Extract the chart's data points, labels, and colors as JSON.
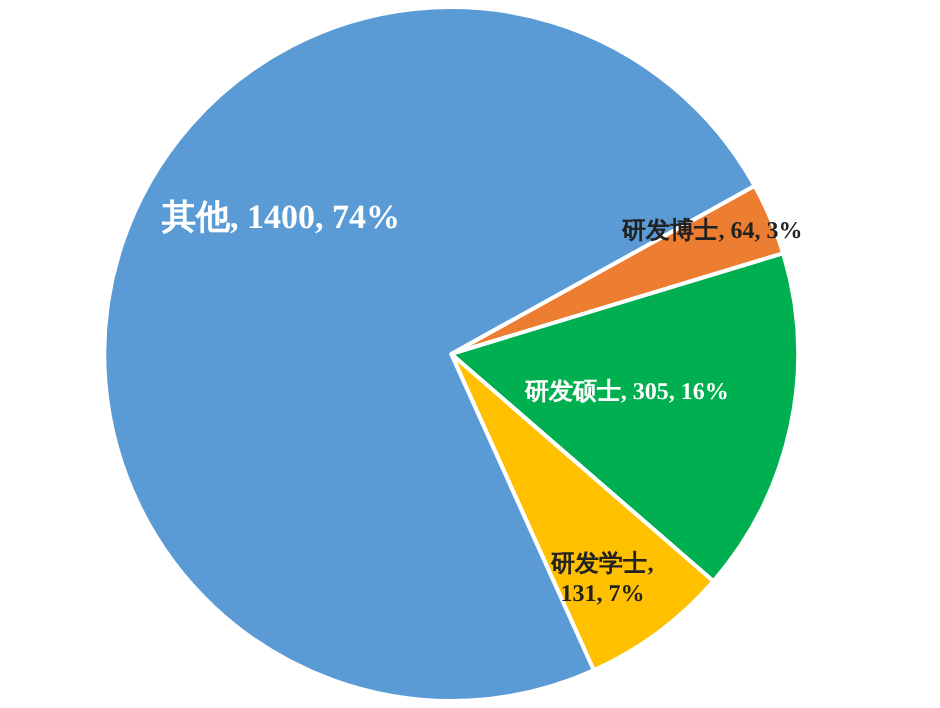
{
  "chart_data": {
    "type": "pie",
    "categories": [
      "研发博士",
      "研发硕士",
      "研发学士",
      "其他"
    ],
    "values": [
      64,
      305,
      131,
      1400
    ],
    "colors": [
      "#ed7d31",
      "#00b050",
      "#ffc000",
      "#5b9bd5"
    ],
    "value_labels": [
      ", 64, 3%",
      ", 305, 16%",
      ",\n131, 7%",
      ", 1400, 74%"
    ],
    "legend": false
  }
}
